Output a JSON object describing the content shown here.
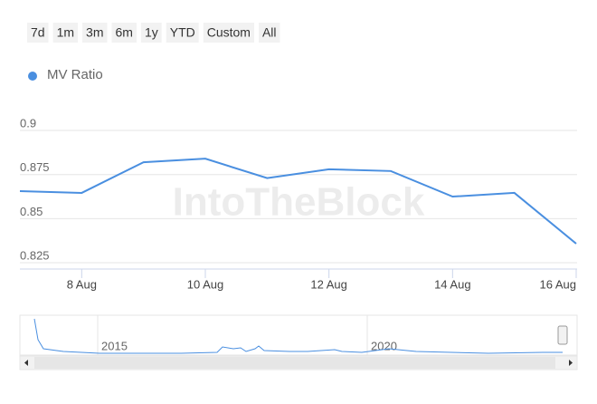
{
  "range_buttons": [
    "7d",
    "1m",
    "3m",
    "6m",
    "1y",
    "YTD",
    "Custom",
    "All"
  ],
  "watermark": "IntoTheBlock",
  "navigator": {
    "labels": [
      "2015",
      "2020"
    ]
  },
  "chart_data": {
    "type": "line",
    "x": [
      "7 Aug",
      "8 Aug",
      "9 Aug",
      "10 Aug",
      "11 Aug",
      "12 Aug",
      "13 Aug",
      "14 Aug",
      "15 Aug",
      "16 Aug"
    ],
    "series": [
      {
        "name": "MV Ratio",
        "color": "#4a8fe0",
        "values": [
          0.8656,
          0.8646,
          0.882,
          0.884,
          0.873,
          0.878,
          0.877,
          0.8625,
          0.8646,
          0.8358
        ]
      }
    ],
    "ylim": [
      0.8214,
      0.9175
    ],
    "yticks": [
      0.825,
      0.85,
      0.875,
      0.9
    ],
    "xticks": [
      "8 Aug",
      "10 Aug",
      "12 Aug",
      "14 Aug",
      "16 Aug"
    ],
    "grid": true
  }
}
